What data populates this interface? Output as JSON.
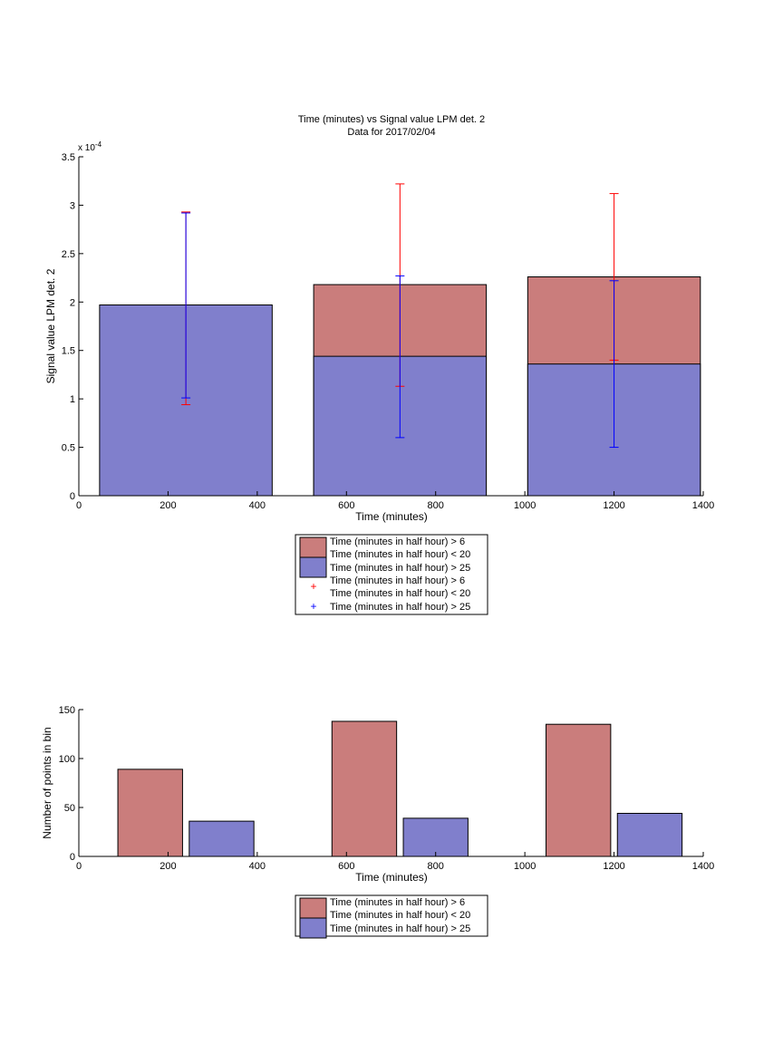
{
  "colors": {
    "red_bar": "#ca7d7c",
    "blue_bar": "#807fcc",
    "red_err": "#ff0000",
    "blue_err": "#0000ff"
  },
  "chart_data": [
    {
      "type": "bar",
      "title": "Time (minutes) vs Signal value LPM det. 2",
      "subtitle": "Data for 2017/02/04",
      "xlabel": "Time (minutes)",
      "ylabel": "Signal value LPM det. 2",
      "y_exponent_label": "x 10",
      "y_exponent": "-4",
      "xlim": [
        0,
        1400
      ],
      "ylim": [
        0,
        3.5
      ],
      "xticks": [
        "0",
        "200",
        "400",
        "600",
        "800",
        "1000",
        "1200",
        "1400"
      ],
      "yticks": [
        "0",
        "0.5",
        "1",
        "1.5",
        "2",
        "2.5",
        "3",
        "3.5"
      ],
      "bars": [
        {
          "x_center": 240,
          "width": 387,
          "red": 1.94,
          "blue": 1.97
        },
        {
          "x_center": 720,
          "width": 387,
          "red": 2.18,
          "blue": 1.44
        },
        {
          "x_center": 1200,
          "width": 387,
          "red": 2.26,
          "blue": 1.36
        }
      ],
      "errorbars": [
        {
          "x": 240,
          "series": "red",
          "low": 0.94,
          "high": 2.93
        },
        {
          "x": 720,
          "series": "red",
          "low": 1.13,
          "high": 3.22
        },
        {
          "x": 1200,
          "series": "red",
          "low": 1.4,
          "high": 3.12
        },
        {
          "x": 240,
          "series": "blue",
          "low": 1.01,
          "high": 2.92
        },
        {
          "x": 720,
          "series": "blue",
          "low": 0.6,
          "high": 2.27
        },
        {
          "x": 1200,
          "series": "blue",
          "low": 0.5,
          "high": 2.22
        }
      ],
      "legend": [
        "Time (minutes in half hour) > 6",
        "Time (minutes in half hour) < 20",
        "Time (minutes in half hour) > 25",
        "Time (minutes in half hour) > 6",
        "Time (minutes in half hour) < 20",
        "Time (minutes in half hour) > 25"
      ]
    },
    {
      "type": "bar",
      "xlabel": "Time (minutes)",
      "ylabel": "Number of points in bin",
      "xlim": [
        0,
        1400
      ],
      "ylim": [
        0,
        150
      ],
      "xticks": [
        "0",
        "200",
        "400",
        "600",
        "800",
        "1000",
        "1200",
        "1400"
      ],
      "yticks": [
        "0",
        "50",
        "100",
        "150"
      ],
      "groups": [
        {
          "red": {
            "x_center": 160,
            "value": 89
          },
          "blue": {
            "x_center": 320,
            "value": 36
          }
        },
        {
          "red": {
            "x_center": 640,
            "value": 138
          },
          "blue": {
            "x_center": 800,
            "value": 39
          }
        },
        {
          "red": {
            "x_center": 1120,
            "value": 135
          },
          "blue": {
            "x_center": 1280,
            "value": 44
          }
        }
      ],
      "bar_width": 145,
      "legend": [
        "Time (minutes in half hour) > 6",
        "Time (minutes in half hour) < 20",
        "Time (minutes in half hour) > 25"
      ]
    }
  ]
}
